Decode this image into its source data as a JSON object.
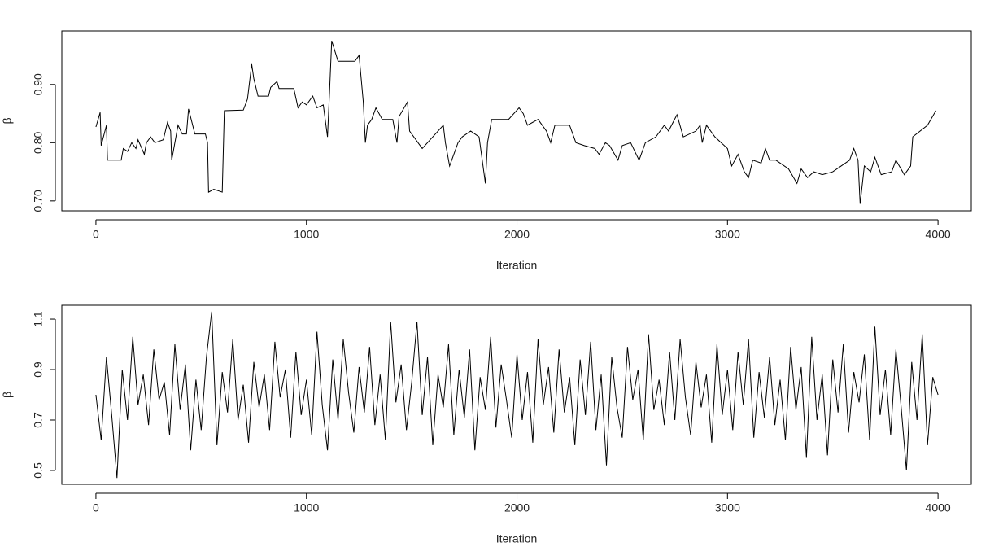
{
  "chart_data": [
    {
      "type": "line",
      "xlabel": "Iteration",
      "ylabel": "β",
      "color": "#000000",
      "xlim": [
        -162,
        4158
      ],
      "ylim": [
        0.683,
        0.992
      ],
      "xticks": [
        0,
        1000,
        2000,
        3000,
        4000
      ],
      "yticks": [
        {
          "value": 0.7,
          "label": "0.70"
        },
        {
          "value": 0.8,
          "label": "0.80"
        },
        {
          "value": 0.9,
          "label": "0.90"
        }
      ],
      "x": [
        0,
        20,
        25,
        50,
        55,
        120,
        130,
        150,
        170,
        190,
        200,
        230,
        240,
        260,
        280,
        320,
        340,
        355,
        360,
        370,
        390,
        410,
        430,
        440,
        470,
        520,
        530,
        535,
        560,
        600,
        610,
        700,
        720,
        740,
        750,
        770,
        820,
        830,
        860,
        870,
        940,
        960,
        980,
        1000,
        1030,
        1050,
        1080,
        1100,
        1110,
        1120,
        1150,
        1230,
        1250,
        1270,
        1280,
        1290,
        1310,
        1330,
        1360,
        1410,
        1430,
        1440,
        1480,
        1490,
        1510,
        1550,
        1600,
        1650,
        1660,
        1680,
        1720,
        1740,
        1780,
        1820,
        1850,
        1860,
        1880,
        1960,
        2010,
        2030,
        2050,
        2100,
        2140,
        2160,
        2180,
        2250,
        2280,
        2320,
        2370,
        2390,
        2420,
        2440,
        2480,
        2500,
        2540,
        2580,
        2610,
        2660,
        2700,
        2720,
        2760,
        2790,
        2850,
        2870,
        2880,
        2900,
        2940,
        2970,
        3000,
        3020,
        3050,
        3080,
        3100,
        3120,
        3160,
        3180,
        3200,
        3230,
        3290,
        3330,
        3350,
        3380,
        3410,
        3450,
        3500,
        3540,
        3580,
        3600,
        3620,
        3630,
        3650,
        3680,
        3700,
        3730,
        3780,
        3800,
        3840,
        3870,
        3880,
        3950,
        3990
      ],
      "values": [
        0.827,
        0.852,
        0.795,
        0.83,
        0.77,
        0.77,
        0.79,
        0.785,
        0.8,
        0.79,
        0.805,
        0.78,
        0.8,
        0.81,
        0.8,
        0.805,
        0.835,
        0.82,
        0.77,
        0.79,
        0.83,
        0.815,
        0.815,
        0.858,
        0.815,
        0.815,
        0.8,
        0.715,
        0.72,
        0.715,
        0.855,
        0.856,
        0.875,
        0.935,
        0.91,
        0.88,
        0.88,
        0.895,
        0.905,
        0.893,
        0.893,
        0.86,
        0.87,
        0.865,
        0.88,
        0.86,
        0.865,
        0.81,
        0.89,
        0.975,
        0.94,
        0.94,
        0.95,
        0.87,
        0.8,
        0.83,
        0.84,
        0.86,
        0.84,
        0.84,
        0.8,
        0.845,
        0.87,
        0.82,
        0.81,
        0.79,
        0.81,
        0.83,
        0.8,
        0.76,
        0.8,
        0.81,
        0.82,
        0.81,
        0.73,
        0.8,
        0.84,
        0.84,
        0.86,
        0.85,
        0.83,
        0.84,
        0.82,
        0.8,
        0.83,
        0.83,
        0.8,
        0.795,
        0.79,
        0.78,
        0.8,
        0.795,
        0.77,
        0.795,
        0.8,
        0.77,
        0.8,
        0.81,
        0.83,
        0.82,
        0.848,
        0.81,
        0.82,
        0.83,
        0.8,
        0.83,
        0.81,
        0.8,
        0.79,
        0.76,
        0.78,
        0.75,
        0.74,
        0.77,
        0.765,
        0.79,
        0.77,
        0.77,
        0.755,
        0.73,
        0.755,
        0.74,
        0.75,
        0.745,
        0.75,
        0.76,
        0.77,
        0.79,
        0.77,
        0.695,
        0.76,
        0.75,
        0.775,
        0.745,
        0.75,
        0.77,
        0.745,
        0.76,
        0.81,
        0.83,
        0.855
      ]
    },
    {
      "type": "line",
      "xlabel": "Iteration",
      "ylabel": "β",
      "color": "#000000",
      "xlim": [
        -162,
        4158
      ],
      "ylim": [
        0.445,
        1.155
      ],
      "xticks": [
        0,
        1000,
        2000,
        3000,
        4000
      ],
      "yticks": [
        0.5,
        0.7,
        0.9,
        1.1
      ],
      "x": [
        0,
        25,
        50,
        75,
        100,
        125,
        150,
        175,
        200,
        225,
        250,
        275,
        300,
        325,
        350,
        375,
        400,
        425,
        450,
        475,
        500,
        525,
        550,
        575,
        600,
        625,
        650,
        675,
        700,
        725,
        750,
        775,
        800,
        825,
        850,
        875,
        900,
        925,
        950,
        975,
        1000,
        1025,
        1050,
        1075,
        1100,
        1125,
        1150,
        1175,
        1200,
        1225,
        1250,
        1275,
        1300,
        1325,
        1350,
        1375,
        1400,
        1425,
        1450,
        1475,
        1500,
        1525,
        1550,
        1575,
        1600,
        1625,
        1650,
        1675,
        1700,
        1725,
        1750,
        1775,
        1800,
        1825,
        1850,
        1875,
        1900,
        1925,
        1950,
        1975,
        2000,
        2025,
        2050,
        2075,
        2100,
        2125,
        2150,
        2175,
        2200,
        2225,
        2250,
        2275,
        2300,
        2325,
        2350,
        2375,
        2400,
        2425,
        2450,
        2475,
        2500,
        2525,
        2550,
        2575,
        2600,
        2625,
        2650,
        2675,
        2700,
        2725,
        2750,
        2775,
        2800,
        2825,
        2850,
        2875,
        2900,
        2925,
        2950,
        2975,
        3000,
        3025,
        3050,
        3075,
        3100,
        3125,
        3150,
        3175,
        3200,
        3225,
        3250,
        3275,
        3300,
        3325,
        3350,
        3375,
        3400,
        3425,
        3450,
        3475,
        3500,
        3525,
        3550,
        3575,
        3600,
        3625,
        3650,
        3675,
        3700,
        3725,
        3750,
        3775,
        3800,
        3825,
        3850,
        3875,
        3900,
        3925,
        3950,
        3975,
        4000
      ],
      "values": [
        0.8,
        0.62,
        0.95,
        0.72,
        0.47,
        0.9,
        0.7,
        1.03,
        0.76,
        0.88,
        0.68,
        0.98,
        0.78,
        0.85,
        0.64,
        1.0,
        0.74,
        0.92,
        0.58,
        0.86,
        0.66,
        0.95,
        1.13,
        0.6,
        0.89,
        0.73,
        1.02,
        0.7,
        0.84,
        0.61,
        0.93,
        0.75,
        0.88,
        0.66,
        1.01,
        0.79,
        0.9,
        0.63,
        0.97,
        0.72,
        0.86,
        0.64,
        1.05,
        0.76,
        0.58,
        0.94,
        0.7,
        1.02,
        0.81,
        0.65,
        0.91,
        0.73,
        0.99,
        0.68,
        0.88,
        0.62,
        1.09,
        0.77,
        0.92,
        0.66,
        0.85,
        1.09,
        0.72,
        0.95,
        0.6,
        0.88,
        0.75,
        1.0,
        0.64,
        0.9,
        0.71,
        0.98,
        0.58,
        0.87,
        0.74,
        1.03,
        0.67,
        0.92,
        0.78,
        0.63,
        0.96,
        0.7,
        0.89,
        0.61,
        1.02,
        0.76,
        0.91,
        0.65,
        0.98,
        0.73,
        0.87,
        0.6,
        0.94,
        0.72,
        1.01,
        0.66,
        0.88,
        0.52,
        0.95,
        0.75,
        0.63,
        0.99,
        0.78,
        0.9,
        0.62,
        1.04,
        0.74,
        0.86,
        0.68,
        0.97,
        0.7,
        1.02,
        0.79,
        0.64,
        0.93,
        0.75,
        0.88,
        0.61,
        1.0,
        0.72,
        0.9,
        0.66,
        0.97,
        0.76,
        1.02,
        0.63,
        0.89,
        0.71,
        0.95,
        0.68,
        0.86,
        0.62,
        0.99,
        0.74,
        0.91,
        0.55,
        1.03,
        0.7,
        0.88,
        0.56,
        0.94,
        0.73,
        1.0,
        0.65,
        0.89,
        0.77,
        0.96,
        0.62,
        1.07,
        0.72,
        0.9,
        0.64,
        0.98,
        0.75,
        0.5,
        0.93,
        0.7,
        1.04,
        0.6,
        0.87,
        0.8
      ]
    }
  ]
}
